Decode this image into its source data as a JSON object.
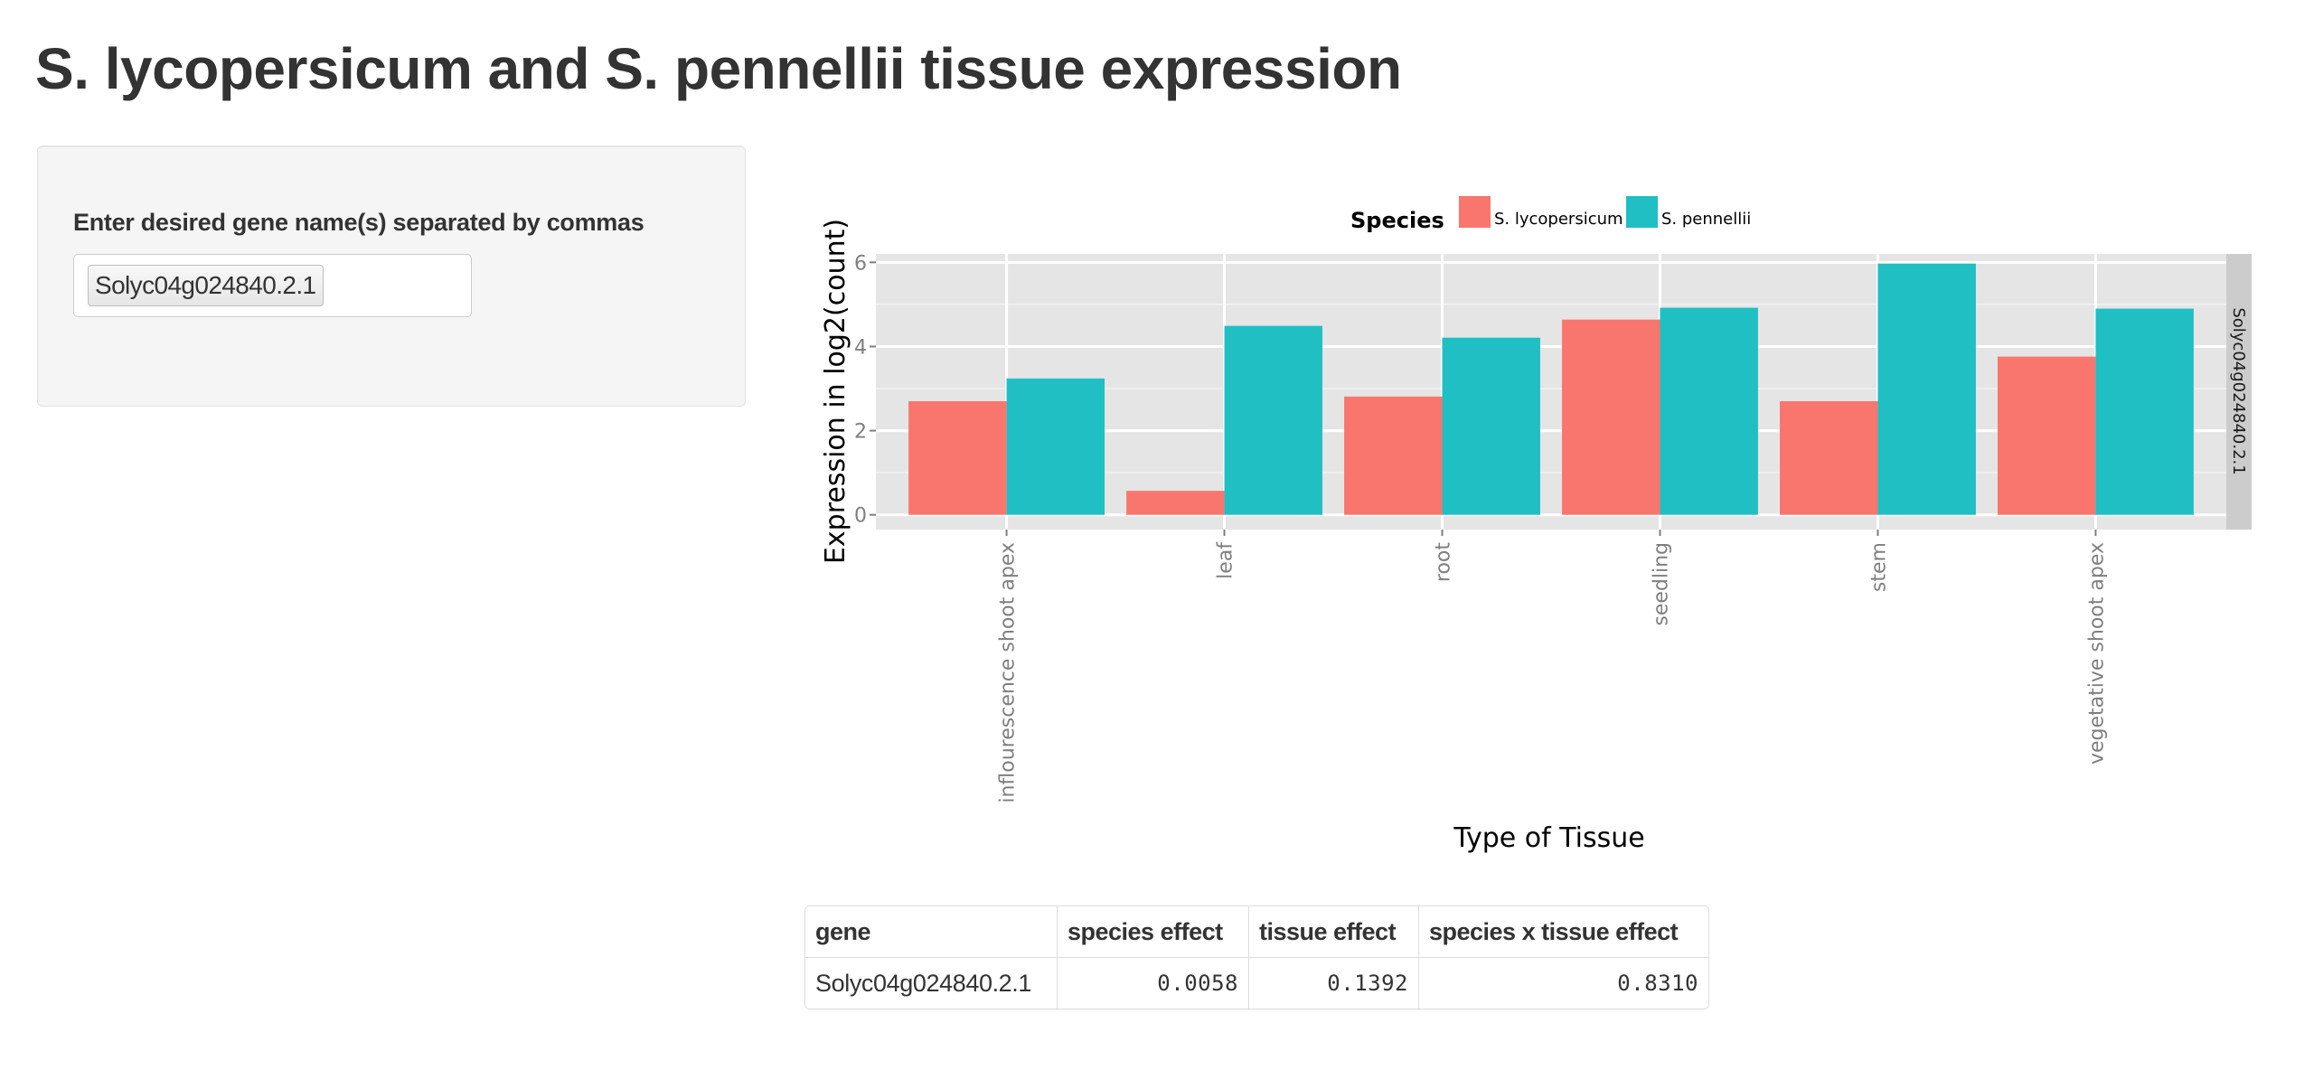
{
  "page": {
    "title": "S. lycopersicum and S. pennellii tissue expression"
  },
  "sidebar": {
    "input_label": "Enter desired gene name(s) separated by commas",
    "selected_genes": [
      "Solyc04g024840.2.1"
    ]
  },
  "chart_data": {
    "type": "bar",
    "title": "",
    "xlabel": "Type of Tissue",
    "ylabel": "Expression in log2(count)",
    "ylim": [
      -0.35,
      6.2
    ],
    "yticks": [
      0,
      2,
      4,
      6
    ],
    "grid": true,
    "facet_label": "Solyc04g024840.2.1",
    "legend": {
      "title": "Species",
      "position": "top"
    },
    "categories": [
      "inflourescence shoot apex",
      "leaf",
      "root",
      "seedling",
      "stem",
      "vegetative shoot apex"
    ],
    "series": [
      {
        "name": "S. lycopersicum",
        "color": "#F8766D",
        "values": [
          2.7,
          0.57,
          2.81,
          4.64,
          2.7,
          3.76
        ]
      },
      {
        "name": "S. pennellii",
        "color": "#1FBFC4",
        "values": [
          3.24,
          4.49,
          4.21,
          4.92,
          5.97,
          4.9
        ]
      }
    ]
  },
  "results_table": {
    "columns": [
      "gene",
      "species effect",
      "tissue effect",
      "species x tissue effect"
    ],
    "rows": [
      [
        "Solyc04g024840.2.1",
        "0.0058",
        "0.1392",
        "0.8310"
      ]
    ]
  },
  "colors": {
    "text": "#333333",
    "panel_bg": "#E5E5E5",
    "strip_bg": "#CCCCCC",
    "axis_text": "#7F7F7F"
  }
}
